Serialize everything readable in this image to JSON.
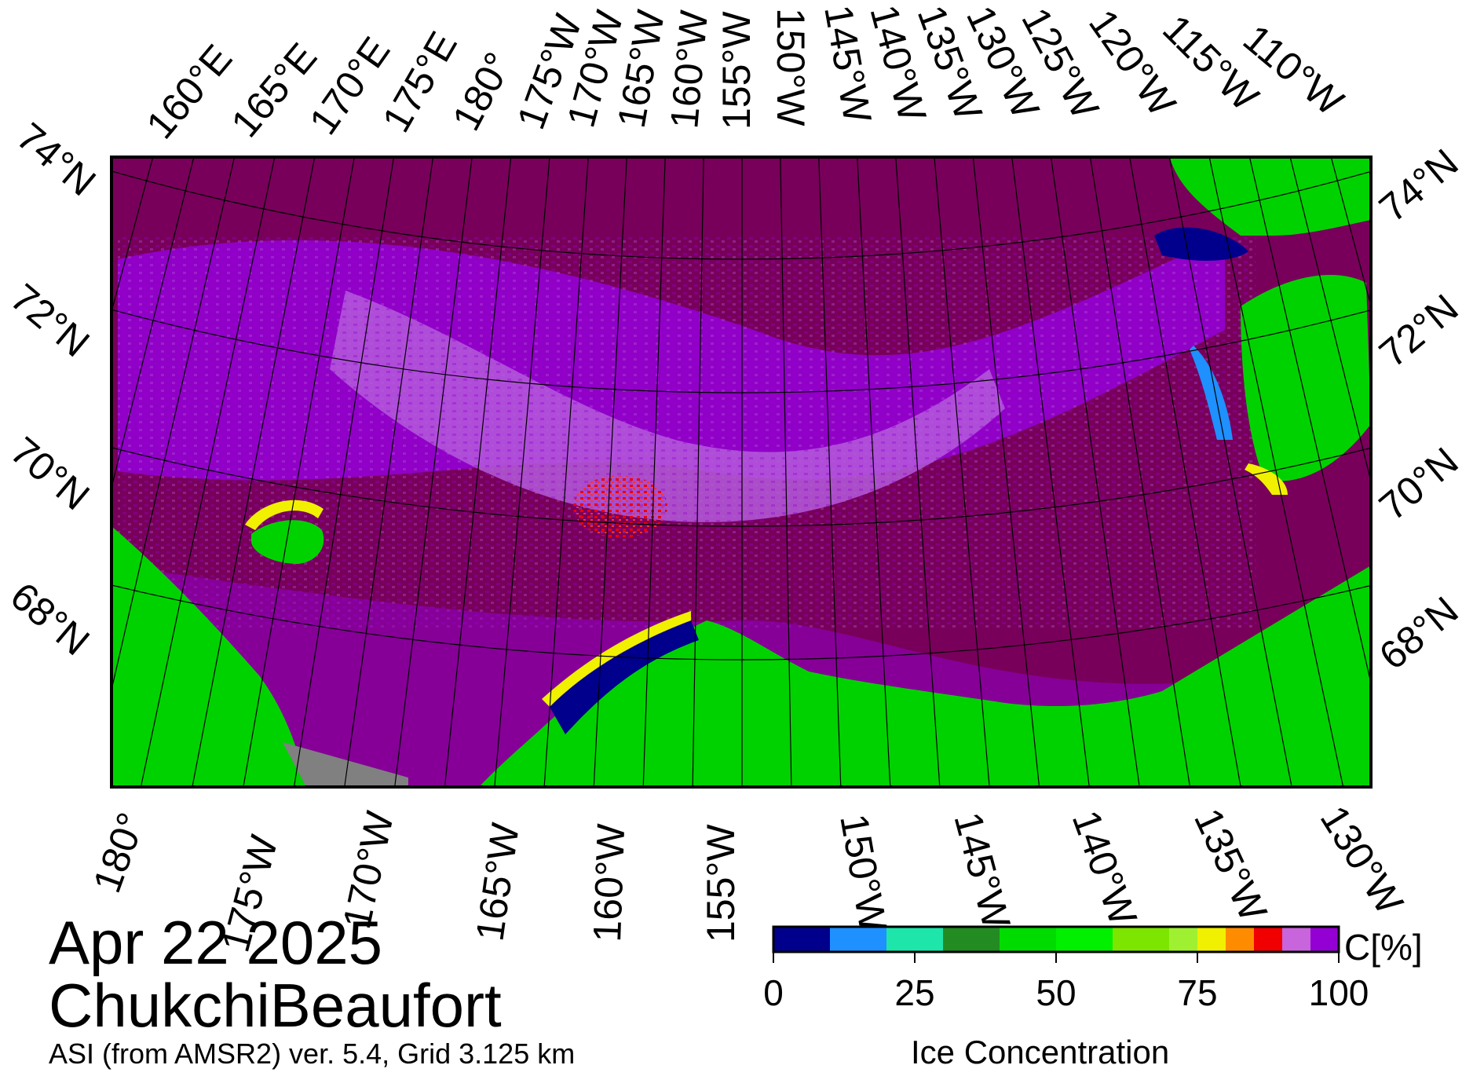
{
  "date": "Apr 22 2025",
  "region": "ChukchiBeaufort",
  "product": "ASI (from AMSR2) ver. 5.4,  Grid 3.125 km",
  "colors": {
    "ocean_low_ice": "#78005a",
    "high_ice_violet": "#9400d3",
    "light_violet": "#b45adc",
    "land": "#00d200",
    "missing": "#808080",
    "frame": "#000000"
  },
  "map": {
    "top_longitude_labels": [
      "160°E",
      "165°E",
      "170°E",
      "175°E",
      "180°",
      "175°W",
      "170°W",
      "165°W",
      "160°W",
      "155°W",
      "150°W",
      "145°W",
      "140°W",
      "135°W",
      "130°W",
      "125°W",
      "120°W",
      "115°W",
      "110°W"
    ],
    "bottom_longitude_labels": [
      "180°",
      "175°W",
      "170°W",
      "165°W",
      "160°W",
      "155°W",
      "150°W",
      "145°W",
      "140°W",
      "135°W",
      "130°W"
    ],
    "left_latitude_labels": [
      "74°N",
      "72°N",
      "70°N",
      "68°N"
    ],
    "right_latitude_labels": [
      "74°N",
      "72°N",
      "70°N",
      "68°N"
    ]
  },
  "colorbar": {
    "title": "Ice Concentration",
    "unit": "C[%]",
    "ticks": [
      "0",
      "25",
      "50",
      "75",
      "100"
    ],
    "tick_values": [
      0,
      25,
      50,
      75,
      100
    ],
    "bins": [
      {
        "from": 0,
        "to": 10,
        "color": "#00008c"
      },
      {
        "from": 10,
        "to": 20,
        "color": "#1e90ff"
      },
      {
        "from": 20,
        "to": 30,
        "color": "#1ee6aa"
      },
      {
        "from": 30,
        "to": 40,
        "color": "#228b22"
      },
      {
        "from": 40,
        "to": 50,
        "color": "#00dc00"
      },
      {
        "from": 50,
        "to": 60,
        "color": "#00f000"
      },
      {
        "from": 60,
        "to": 70,
        "color": "#7ce600"
      },
      {
        "from": 70,
        "to": 75,
        "color": "#a0f032"
      },
      {
        "from": 75,
        "to": 80,
        "color": "#f0f000"
      },
      {
        "from": 80,
        "to": 85,
        "color": "#ff8c00"
      },
      {
        "from": 85,
        "to": 90,
        "color": "#f00000"
      },
      {
        "from": 90,
        "to": 95,
        "color": "#c864dc"
      },
      {
        "from": 95,
        "to": 100,
        "color": "#9400d3"
      }
    ]
  }
}
